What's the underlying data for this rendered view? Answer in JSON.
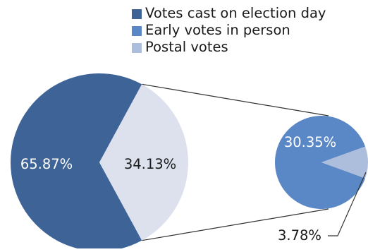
{
  "chart_data": {
    "type": "pie",
    "subtype": "pie-of-pie",
    "legend_position": "top-right",
    "series": [
      {
        "name": "Votes cast on election day",
        "value": 65.87,
        "label": "65.87%",
        "color": "#3E6497"
      },
      {
        "name": "Early votes in person",
        "value": 30.35,
        "label": "30.35%",
        "color": "#5A87C6"
      },
      {
        "name": "Postal votes",
        "value": 3.78,
        "label": "3.78%",
        "color": "#ADBDDC"
      }
    ],
    "combined_slice": {
      "value": 34.13,
      "label": "34.13%",
      "color": "#DDE1EE"
    }
  }
}
